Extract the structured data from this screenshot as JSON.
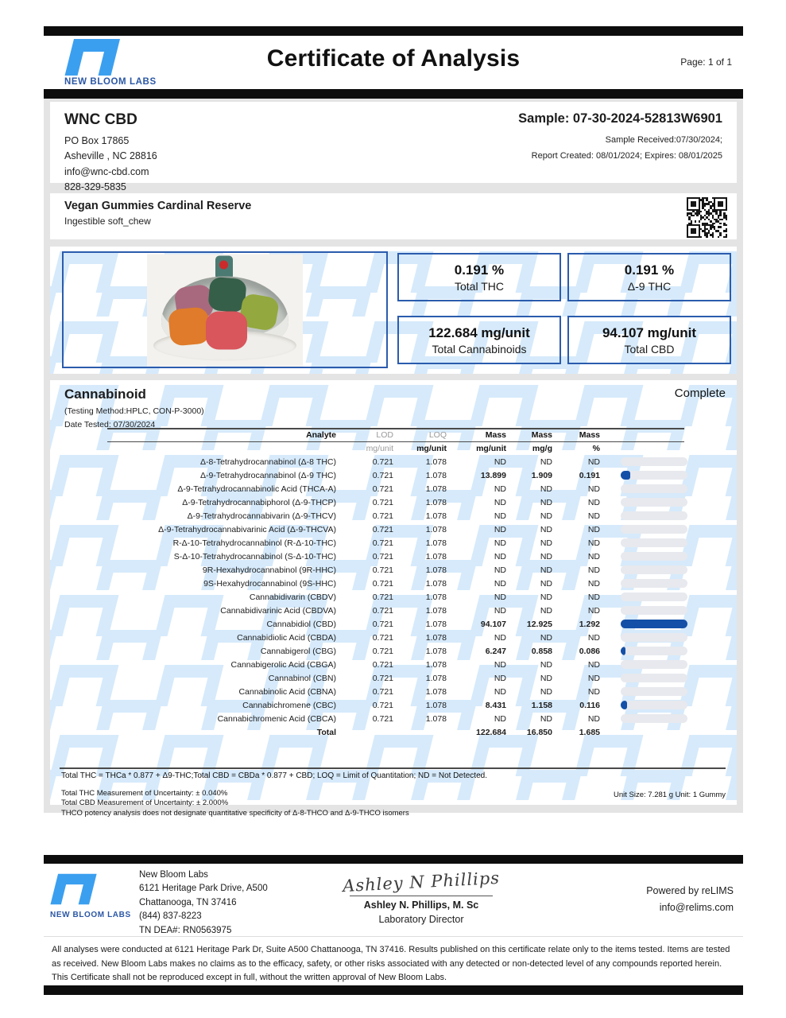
{
  "header": {
    "title": "Certificate of Analysis",
    "page_label": "Page: 1 of 1",
    "logo_text": "NEW BLOOM LABS",
    "logo_color": "#3b9ff0"
  },
  "client": {
    "name": "WNC CBD",
    "address1": "PO Box 17865",
    "address2": "Asheville , NC 28816",
    "email": "info@wnc-cbd.com",
    "phone": "828-329-5835"
  },
  "sample": {
    "id": "Sample: 07-30-2024-52813W6901",
    "received": "Sample Received:07/30/2024;",
    "report": "Report Created: 08/01/2024; Expires: 08/01/2025"
  },
  "product": {
    "name": "Vegan Gummies Cardinal Reserve",
    "type": "Ingestible soft_chew"
  },
  "summary": {
    "box1": {
      "value": "0.191 %",
      "label": "Total THC"
    },
    "box2": {
      "value": "0.191 %",
      "label": "Δ-9 THC"
    },
    "box3": {
      "value": "122.684 mg/unit",
      "label": "Total Cannabinoids"
    },
    "box4": {
      "value": "94.107 mg/unit",
      "label": "Total CBD"
    }
  },
  "cannabinoid": {
    "section_title": "Cannabinoid",
    "status": "Complete",
    "method": "(Testing Method:HPLC, CON-P-3000)",
    "date_tested": "Date Tested: 07/30/2024",
    "columns": {
      "analyte": "Analyte",
      "lod": "LOD",
      "loq": "LOQ",
      "mass1": "Mass",
      "mass2": "Mass",
      "mass3": "Mass"
    },
    "units": {
      "lod": "mg/unit",
      "loq": "mg/unit",
      "mass1": "mg/unit",
      "mass2": "mg/g",
      "mass3": "%"
    },
    "max_pct": 1.292,
    "rows": [
      {
        "name": "Δ-8-Tetrahydrocannabinol (Δ-8 THC)",
        "lod": "0.721",
        "loq": "1.078",
        "mass_unit": "ND",
        "mass_g": "ND",
        "pct": "ND"
      },
      {
        "name": "Δ-9-Tetrahydrocannabinol (Δ-9 THC)",
        "lod": "0.721",
        "loq": "1.078",
        "mass_unit": "13.899",
        "mass_g": "1.909",
        "pct": "0.191"
      },
      {
        "name": "Δ-9-Tetrahydrocannabinolic Acid (THCA-A)",
        "lod": "0.721",
        "loq": "1.078",
        "mass_unit": "ND",
        "mass_g": "ND",
        "pct": "ND"
      },
      {
        "name": "Δ-9-Tetrahydrocannabiphorol (Δ-9-THCP)",
        "lod": "0.721",
        "loq": "1.078",
        "mass_unit": "ND",
        "mass_g": "ND",
        "pct": "ND"
      },
      {
        "name": "Δ-9-Tetrahydrocannabivarin (Δ-9-THCV)",
        "lod": "0.721",
        "loq": "1.078",
        "mass_unit": "ND",
        "mass_g": "ND",
        "pct": "ND"
      },
      {
        "name": "Δ-9-Tetrahydrocannabivarinic Acid (Δ-9-THCVA)",
        "lod": "0.721",
        "loq": "1.078",
        "mass_unit": "ND",
        "mass_g": "ND",
        "pct": "ND"
      },
      {
        "name": "R-Δ-10-Tetrahydrocannabinol (R-Δ-10-THC)",
        "lod": "0.721",
        "loq": "1.078",
        "mass_unit": "ND",
        "mass_g": "ND",
        "pct": "ND"
      },
      {
        "name": "S-Δ-10-Tetrahydrocannabinol (S-Δ-10-THC)",
        "lod": "0.721",
        "loq": "1.078",
        "mass_unit": "ND",
        "mass_g": "ND",
        "pct": "ND"
      },
      {
        "name": "9R-Hexahydrocannabinol (9R-HHC)",
        "lod": "0.721",
        "loq": "1.078",
        "mass_unit": "ND",
        "mass_g": "ND",
        "pct": "ND"
      },
      {
        "name": "9S-Hexahydrocannabinol (9S-HHC)",
        "lod": "0.721",
        "loq": "1.078",
        "mass_unit": "ND",
        "mass_g": "ND",
        "pct": "ND"
      },
      {
        "name": "Cannabidivarin (CBDV)",
        "lod": "0.721",
        "loq": "1.078",
        "mass_unit": "ND",
        "mass_g": "ND",
        "pct": "ND"
      },
      {
        "name": "Cannabidivarinic Acid (CBDVA)",
        "lod": "0.721",
        "loq": "1.078",
        "mass_unit": "ND",
        "mass_g": "ND",
        "pct": "ND"
      },
      {
        "name": "Cannabidiol (CBD)",
        "lod": "0.721",
        "loq": "1.078",
        "mass_unit": "94.107",
        "mass_g": "12.925",
        "pct": "1.292"
      },
      {
        "name": "Cannabidiolic Acid (CBDA)",
        "lod": "0.721",
        "loq": "1.078",
        "mass_unit": "ND",
        "mass_g": "ND",
        "pct": "ND"
      },
      {
        "name": "Cannabigerol (CBG)",
        "lod": "0.721",
        "loq": "1.078",
        "mass_unit": "6.247",
        "mass_g": "0.858",
        "pct": "0.086"
      },
      {
        "name": "Cannabigerolic Acid (CBGA)",
        "lod": "0.721",
        "loq": "1.078",
        "mass_unit": "ND",
        "mass_g": "ND",
        "pct": "ND"
      },
      {
        "name": "Cannabinol (CBN)",
        "lod": "0.721",
        "loq": "1.078",
        "mass_unit": "ND",
        "mass_g": "ND",
        "pct": "ND"
      },
      {
        "name": "Cannabinolic Acid (CBNA)",
        "lod": "0.721",
        "loq": "1.078",
        "mass_unit": "ND",
        "mass_g": "ND",
        "pct": "ND"
      },
      {
        "name": "Cannabichromene (CBC)",
        "lod": "0.721",
        "loq": "1.078",
        "mass_unit": "8.431",
        "mass_g": "1.158",
        "pct": "0.116"
      },
      {
        "name": "Cannabichromenic Acid (CBCA)",
        "lod": "0.721",
        "loq": "1.078",
        "mass_unit": "ND",
        "mass_g": "ND",
        "pct": "ND"
      }
    ],
    "total": {
      "name": "Total",
      "mass_unit": "122.684",
      "mass_g": "16.850",
      "pct": "1.685"
    },
    "footnote": "Total THC = THCa * 0.877 + Δ9-THC;Total CBD = CBDa * 0.877 + CBD; LOQ = Limit of Quantitation; ND = Not Detected.",
    "uncertainty1": "Total THC Measurement of Uncertainty: ± 0.040%",
    "uncertainty2": "Total CBD Measurement of Uncertainty: ± 2.000%",
    "uncertainty3": "THCO potency analysis does not designate quantitative specificity of Δ-8-THCO and Δ-9-THCO isomers",
    "unit_size": "Unit Size: 7.281 g Unit: 1 Gummy"
  },
  "footer": {
    "logo_text": "NEW BLOOM LABS",
    "lab_name": "New Bloom Labs",
    "lab_address1": "6121 Heritage Park Drive, A500",
    "lab_address2": "Chattanooga, TN 37416",
    "lab_phone": "(844) 837-8223",
    "lab_dea": "TN DEA#: RN0563975",
    "signature_script": "Ashley N Phillips",
    "signer_name": "Ashley N. Phillips, M. Sc",
    "signer_title": "Laboratory Director",
    "powered_by": "Powered by reLIMS",
    "powered_email": "info@relims.com"
  },
  "disclaimer": "All analyses were conducted at 6121 Heritage Park Dr, Suite A500 Chattanooga, TN 37416. Results published on this certificate relate only to the items tested. Items are tested as received. New Bloom Labs makes no claims as to the efficacy, safety, or other risks associated with any detected or non-detected level of any compounds reported herein. This Certificate shall not be reproduced except in full, without the written approval of New Bloom Labs.",
  "colors": {
    "accent_blue": "#2b5cad",
    "logo_blue": "#3b9ff0",
    "bar_blue": "#1450a8",
    "watermark_blue": "#d6eafb"
  }
}
